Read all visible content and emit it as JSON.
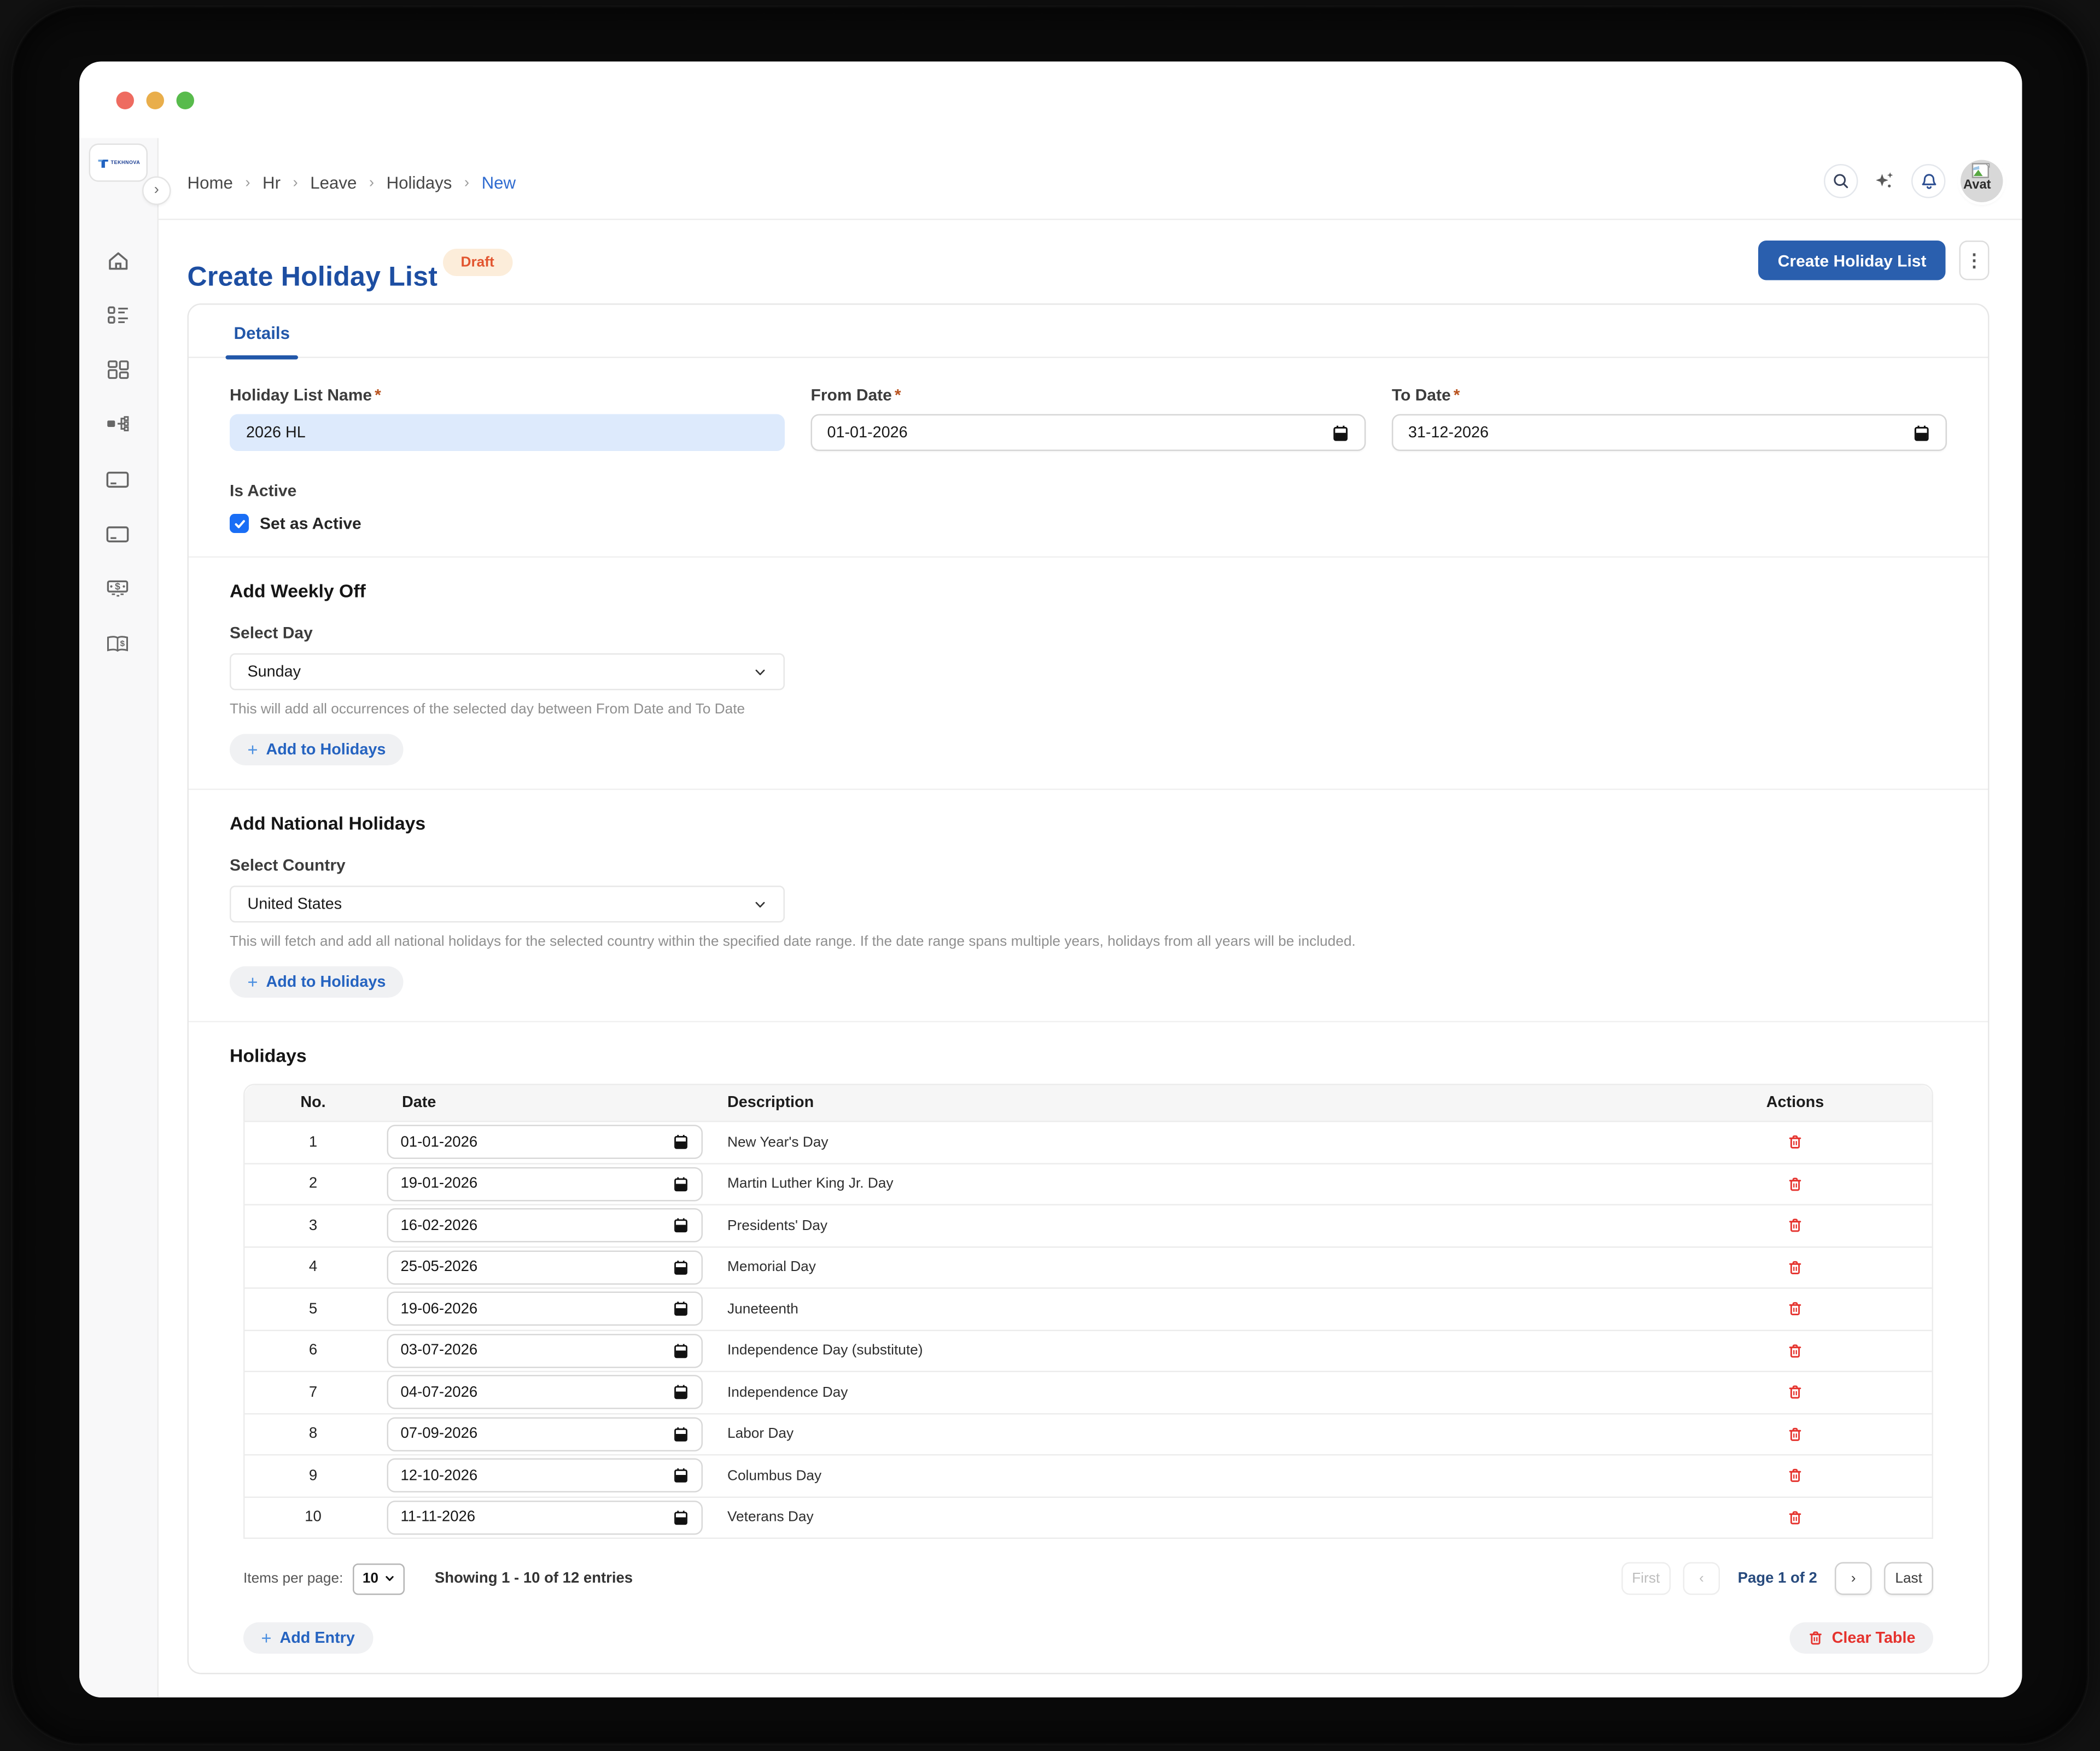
{
  "ui": {
    "plus": "+",
    "collapse": "›",
    "kebab": "⋮",
    "crumb_sep": "›",
    "checkmark": "✓"
  },
  "colors": {
    "accent": "#2a5fae",
    "title_blue": "#1d4ea2",
    "link_blue": "#2f6bd0",
    "draft_bg": "#fcedda",
    "draft_text": "#e2552f",
    "danger": "#e5322d",
    "filled_input_bg": "#ddeafc",
    "sidebar_bg": "#f8f8f9"
  },
  "sidebar": {
    "logo_text": "TEKHNOVA"
  },
  "breadcrumb": {
    "items": [
      {
        "label": "Home"
      },
      {
        "label": "Hr"
      },
      {
        "label": "Leave"
      },
      {
        "label": "Holidays"
      }
    ],
    "current": "New"
  },
  "topbar": {
    "avatar_alt": "Avat"
  },
  "page": {
    "title": "Create Holiday List",
    "status_badge": "Draft",
    "primary_button": "Create Holiday List"
  },
  "tabs": {
    "details_label": "Details"
  },
  "form": {
    "required_marker": "*",
    "holiday_list_name": {
      "label": "Holiday List Name",
      "value": "2026 HL"
    },
    "from_date": {
      "label": "From Date",
      "value": "01-01-2026"
    },
    "to_date": {
      "label": "To Date",
      "value": "31-12-2026"
    },
    "is_active": {
      "label": "Is Active",
      "checkbox_label": "Set as Active",
      "checked": true
    }
  },
  "weekly_off": {
    "heading": "Add Weekly Off",
    "select_label": "Select Day",
    "selected": "Sunday",
    "helper": "This will add all occurrences of the selected day between From Date and To Date",
    "button_label": "Add to Holidays"
  },
  "national_holidays": {
    "heading": "Add National Holidays",
    "select_label": "Select Country",
    "selected": "United States",
    "helper": "This will fetch and add all national holidays for the selected country within the specified date range. If the date range spans multiple years, holidays from all years will be included.",
    "button_label": "Add to Holidays"
  },
  "holidays_table": {
    "heading": "Holidays",
    "columns": [
      "No.",
      "Date",
      "Description",
      "Actions"
    ],
    "rows": [
      {
        "no": "1",
        "date": "01-01-2026",
        "description": "New Year's Day"
      },
      {
        "no": "2",
        "date": "19-01-2026",
        "description": "Martin Luther King Jr. Day"
      },
      {
        "no": "3",
        "date": "16-02-2026",
        "description": "Presidents' Day"
      },
      {
        "no": "4",
        "date": "25-05-2026",
        "description": "Memorial Day"
      },
      {
        "no": "5",
        "date": "19-06-2026",
        "description": "Juneteenth"
      },
      {
        "no": "6",
        "date": "03-07-2026",
        "description": "Independence Day (substitute)"
      },
      {
        "no": "7",
        "date": "04-07-2026",
        "description": "Independence Day"
      },
      {
        "no": "8",
        "date": "07-09-2026",
        "description": "Labor Day"
      },
      {
        "no": "9",
        "date": "12-10-2026",
        "description": "Columbus Day"
      },
      {
        "no": "10",
        "date": "11-11-2026",
        "description": "Veterans Day"
      }
    ],
    "pagination": {
      "items_per_page_label": "Items per page:",
      "items_per_page": "10",
      "showing": "Showing 1 - 10 of 12 entries",
      "first": "First",
      "prev": "‹",
      "page": "Page 1 of 2",
      "next": "›",
      "last": "Last"
    },
    "add_entry_label": "Add Entry",
    "clear_table_label": "Clear Table"
  }
}
